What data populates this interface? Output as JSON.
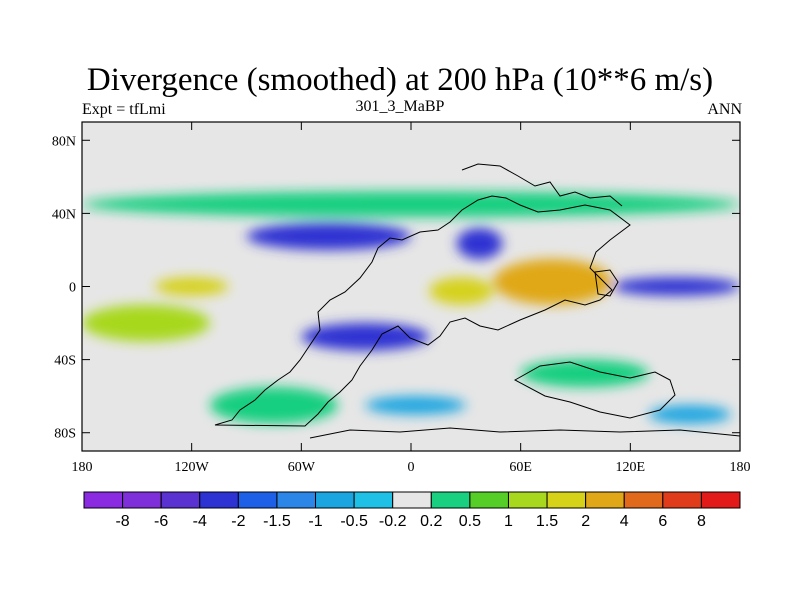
{
  "chart_data": {
    "type": "heatmap",
    "title": "Divergence (smoothed) at 200 hPa (10**6 m/s)",
    "subtitle_left": "Expt = tfLmi",
    "subtitle_center": "301_3_MaBP",
    "subtitle_right": "ANN",
    "x_range": [
      -180,
      180
    ],
    "y_range": [
      -90,
      90
    ],
    "x_ticks": [
      {
        "value": -180,
        "label": "180"
      },
      {
        "value": -120,
        "label": "120W"
      },
      {
        "value": -60,
        "label": "60W"
      },
      {
        "value": 0,
        "label": "0"
      },
      {
        "value": 60,
        "label": "60E"
      },
      {
        "value": 120,
        "label": "120E"
      },
      {
        "value": 180,
        "label": "180"
      }
    ],
    "y_ticks": [
      {
        "value": 80,
        "label": "80N"
      },
      {
        "value": 40,
        "label": "40N"
      },
      {
        "value": 0,
        "label": "0"
      },
      {
        "value": -40,
        "label": "40S"
      },
      {
        "value": -80,
        "label": "80S"
      }
    ],
    "colorbar": {
      "levels": [
        "-8",
        "-6",
        "-4",
        "-2",
        "-1.5",
        "-1",
        "-0.5",
        "-0.2",
        "0.2",
        "0.5",
        "1",
        "1.5",
        "2",
        "4",
        "6",
        "8"
      ],
      "colors": [
        "#8a2be2",
        "#7f2fd9",
        "#5a32d1",
        "#2d32d2",
        "#1e5fe8",
        "#2b86e8",
        "#1aa5e0",
        "#1ec0e6",
        "#e6e6e6",
        "#19cf80",
        "#55cf28",
        "#a8d81d",
        "#d6d21a",
        "#e0a819",
        "#e0691b",
        "#e03c1b",
        "#e21a1a"
      ]
    },
    "field_regions": [
      {
        "lon_min": -180,
        "lon_max": 180,
        "lat_min": 38,
        "lat_max": 52,
        "level_index": 9
      },
      {
        "lon_min": -90,
        "lon_max": 0,
        "lat_min": 20,
        "lat_max": 35,
        "level_index": 3
      },
      {
        "lon_min": 25,
        "lon_max": 50,
        "lat_min": 15,
        "lat_max": 32,
        "level_index": 3
      },
      {
        "lon_min": 45,
        "lon_max": 110,
        "lat_min": -10,
        "lat_max": 15,
        "level_index": 13
      },
      {
        "lon_min": 10,
        "lon_max": 45,
        "lat_min": -10,
        "lat_max": 5,
        "level_index": 12
      },
      {
        "lon_min": -60,
        "lon_max": 10,
        "lat_min": -35,
        "lat_max": -20,
        "level_index": 3
      },
      {
        "lon_min": 110,
        "lon_max": 180,
        "lat_min": -5,
        "lat_max": 5,
        "level_index": 3
      },
      {
        "lon_min": -140,
        "lon_max": -100,
        "lat_min": -5,
        "lat_max": 5,
        "level_index": 12
      },
      {
        "lon_min": 60,
        "lon_max": 130,
        "lat_min": -55,
        "lat_max": -40,
        "level_index": 9
      },
      {
        "lon_min": -180,
        "lon_max": -110,
        "lat_min": -30,
        "lat_max": -10,
        "level_index": 11
      },
      {
        "lon_min": -25,
        "lon_max": 30,
        "lat_min": -70,
        "lat_max": -60,
        "level_index": 6
      },
      {
        "lon_min": -110,
        "lon_max": -40,
        "lat_min": -75,
        "lat_max": -55,
        "level_index": 9
      },
      {
        "lon_min": 130,
        "lon_max": 175,
        "lat_min": -75,
        "lat_max": -65,
        "level_index": 6
      }
    ]
  }
}
